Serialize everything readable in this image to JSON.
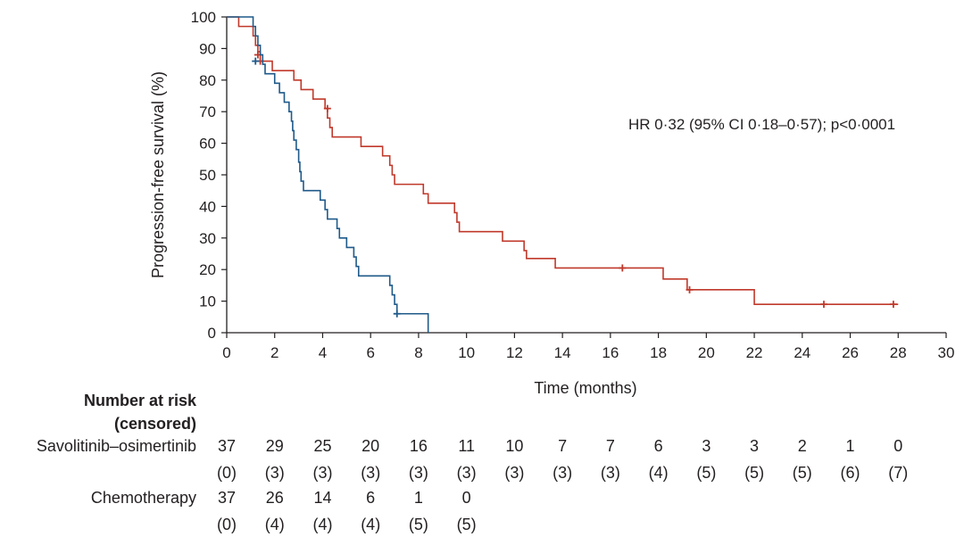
{
  "chart_data": {
    "type": "line",
    "subtype": "kaplan-meier",
    "xlabel": "Time (months)",
    "ylabel": "Progression-free survival (%)",
    "xlim": [
      0,
      30
    ],
    "ylim": [
      0,
      100
    ],
    "xticks": [
      0,
      2,
      4,
      6,
      8,
      10,
      12,
      14,
      16,
      18,
      20,
      22,
      24,
      26,
      28,
      30
    ],
    "yticks": [
      0,
      10,
      20,
      30,
      40,
      50,
      60,
      70,
      80,
      90,
      100
    ],
    "grid": false,
    "annotation": "HR 0·32 (95% CI 0·18–0·57); p<0·0001",
    "series": [
      {
        "name": "Savolitinib–osimertinib",
        "color": "#c0392b",
        "steps": [
          [
            0,
            100
          ],
          [
            0.5,
            97
          ],
          [
            1.1,
            97
          ],
          [
            1.1,
            94
          ],
          [
            1.2,
            91
          ],
          [
            1.3,
            89
          ],
          [
            1.4,
            86
          ],
          [
            1.9,
            86
          ],
          [
            1.9,
            83
          ],
          [
            2.8,
            83
          ],
          [
            2.8,
            80
          ],
          [
            3.1,
            80
          ],
          [
            3.1,
            77
          ],
          [
            3.6,
            77
          ],
          [
            3.6,
            74
          ],
          [
            4.1,
            74
          ],
          [
            4.1,
            71
          ],
          [
            4.2,
            71
          ],
          [
            4.2,
            68
          ],
          [
            4.3,
            68
          ],
          [
            4.3,
            65
          ],
          [
            4.4,
            65
          ],
          [
            4.4,
            62
          ],
          [
            5.6,
            62
          ],
          [
            5.6,
            59
          ],
          [
            6.5,
            59
          ],
          [
            6.5,
            56
          ],
          [
            6.8,
            56
          ],
          [
            6.8,
            53
          ],
          [
            6.9,
            53
          ],
          [
            6.9,
            50
          ],
          [
            7.0,
            50
          ],
          [
            7.0,
            47
          ],
          [
            8.2,
            47
          ],
          [
            8.2,
            44
          ],
          [
            8.4,
            44
          ],
          [
            8.4,
            41
          ],
          [
            9.5,
            41
          ],
          [
            9.5,
            38
          ],
          [
            9.6,
            38
          ],
          [
            9.6,
            35
          ],
          [
            9.7,
            35
          ],
          [
            9.7,
            32
          ],
          [
            11.5,
            32
          ],
          [
            11.5,
            29
          ],
          [
            12.4,
            29
          ],
          [
            12.4,
            26
          ],
          [
            12.5,
            26
          ],
          [
            12.5,
            23.5
          ],
          [
            13.7,
            23.5
          ],
          [
            13.7,
            20.5
          ],
          [
            18.2,
            20.5
          ],
          [
            18.2,
            17
          ],
          [
            19.2,
            17
          ],
          [
            19.2,
            13.6
          ],
          [
            22.0,
            13.6
          ],
          [
            22.0,
            9
          ],
          [
            28.0,
            9
          ]
        ],
        "censored": [
          [
            1.3,
            88
          ],
          [
            1.4,
            86
          ],
          [
            4.2,
            71
          ],
          [
            16.5,
            20.5
          ],
          [
            19.3,
            13.6
          ],
          [
            24.9,
            9
          ],
          [
            27.8,
            9
          ]
        ]
      },
      {
        "name": "Chemotherapy",
        "color": "#1f5a8a",
        "steps": [
          [
            0,
            100
          ],
          [
            1.1,
            100
          ],
          [
            1.1,
            97
          ],
          [
            1.2,
            94
          ],
          [
            1.3,
            91
          ],
          [
            1.4,
            88
          ],
          [
            1.5,
            85
          ],
          [
            1.6,
            82
          ],
          [
            2.0,
            82
          ],
          [
            2.0,
            79
          ],
          [
            2.2,
            79
          ],
          [
            2.2,
            76
          ],
          [
            2.4,
            76
          ],
          [
            2.4,
            73
          ],
          [
            2.6,
            73
          ],
          [
            2.6,
            70
          ],
          [
            2.7,
            70
          ],
          [
            2.7,
            67
          ],
          [
            2.75,
            67
          ],
          [
            2.75,
            64
          ],
          [
            2.8,
            64
          ],
          [
            2.8,
            61
          ],
          [
            2.9,
            61
          ],
          [
            2.9,
            58
          ],
          [
            3.0,
            58
          ],
          [
            3.0,
            54
          ],
          [
            3.05,
            54
          ],
          [
            3.05,
            51
          ],
          [
            3.1,
            51
          ],
          [
            3.1,
            48
          ],
          [
            3.2,
            48
          ],
          [
            3.2,
            45
          ],
          [
            3.9,
            45
          ],
          [
            3.9,
            42
          ],
          [
            4.1,
            42
          ],
          [
            4.1,
            39
          ],
          [
            4.2,
            39
          ],
          [
            4.2,
            36
          ],
          [
            4.6,
            36
          ],
          [
            4.6,
            33
          ],
          [
            4.7,
            33
          ],
          [
            4.7,
            30
          ],
          [
            5.0,
            30
          ],
          [
            5.0,
            27
          ],
          [
            5.3,
            27
          ],
          [
            5.3,
            24
          ],
          [
            5.4,
            24
          ],
          [
            5.4,
            21
          ],
          [
            5.5,
            21
          ],
          [
            5.5,
            18
          ],
          [
            6.8,
            18
          ],
          [
            6.8,
            15
          ],
          [
            6.9,
            15
          ],
          [
            6.9,
            12
          ],
          [
            7.0,
            12
          ],
          [
            7.0,
            9
          ],
          [
            7.1,
            9
          ],
          [
            7.1,
            6
          ],
          [
            8.4,
            6
          ],
          [
            8.4,
            0
          ]
        ],
        "censored": [
          [
            1.2,
            86
          ],
          [
            7.1,
            6
          ]
        ]
      }
    ]
  },
  "risk_table": {
    "title_line1": "Number at risk",
    "title_line2": "(censored)",
    "rows": [
      {
        "label": "Savolitinib–osimertinib",
        "numbers": [
          "37",
          "29",
          "25",
          "20",
          "16",
          "11",
          "10",
          "7",
          "7",
          "6",
          "3",
          "3",
          "2",
          "1",
          "0"
        ],
        "censored": [
          "(0)",
          "(3)",
          "(3)",
          "(3)",
          "(3)",
          "(3)",
          "(3)",
          "(3)",
          "(3)",
          "(4)",
          "(5)",
          "(5)",
          "(5)",
          "(6)",
          "(7)"
        ]
      },
      {
        "label": "Chemotherapy",
        "numbers": [
          "37",
          "26",
          "14",
          "6",
          "1",
          "0"
        ],
        "censored": [
          "(0)",
          "(4)",
          "(4)",
          "(4)",
          "(5)",
          "(5)"
        ]
      }
    ]
  }
}
